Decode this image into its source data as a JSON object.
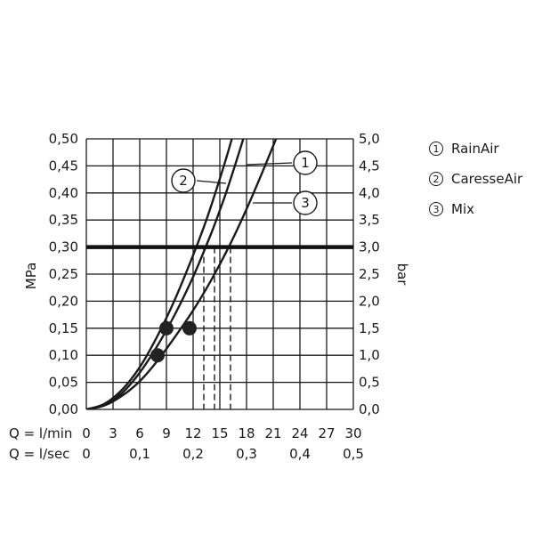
{
  "chart_data": {
    "type": "line",
    "y_left_label": "MPa",
    "y_right_label": "bar",
    "y_left_ticks": [
      "0,00",
      "0,05",
      "0,10",
      "0,15",
      "0,20",
      "0,25",
      "0,30",
      "0,35",
      "0,40",
      "0,45",
      "0,50"
    ],
    "y_right_ticks": [
      "0,0",
      "0,5",
      "1,0",
      "1,5",
      "2,0",
      "2,5",
      "3,0",
      "3,5",
      "4,0",
      "4,5",
      "5,0"
    ],
    "ylim": [
      0,
      0.5
    ],
    "xlim": [
      0,
      30
    ],
    "x_row1_prefix": "Q = l/min",
    "x_row1_ticks": [
      "0",
      "3",
      "6",
      "9",
      "12",
      "15",
      "18",
      "21",
      "24",
      "27",
      "30"
    ],
    "x_row2_prefix": "Q = l/sec",
    "x_row2_ticks": [
      "0",
      "0,1",
      "0,2",
      "0,3",
      "0,4",
      "0,5"
    ],
    "reference_pressure": 0.3,
    "series": [
      {
        "name": "RainAir",
        "number": "1",
        "x": [
          0,
          2,
          4,
          6,
          8,
          10,
          12,
          14,
          15,
          16,
          18,
          20,
          20.8
        ],
        "y": [
          0,
          0.008,
          0.03,
          0.068,
          0.118,
          0.177,
          0.245,
          0.324,
          0.368,
          0.415,
          0.52,
          0.64,
          0.69
        ],
        "marker": {
          "x": 8.0,
          "y": 0.1
        },
        "drop_x": 14.4
      },
      {
        "name": "CaresseAir",
        "number": "2",
        "x": [
          0,
          2,
          4,
          6,
          8,
          10,
          12,
          13,
          14,
          16,
          18,
          18.8
        ],
        "y": [
          0,
          0.01,
          0.036,
          0.078,
          0.136,
          0.205,
          0.285,
          0.328,
          0.375,
          0.48,
          0.6,
          0.65
        ],
        "marker": {
          "x": 9.0,
          "y": 0.15
        },
        "drop_x": 13.2
      },
      {
        "name": "Mix",
        "number": "3",
        "x": [
          0,
          2,
          4,
          6,
          8,
          10,
          12,
          14,
          16,
          18,
          20,
          22,
          22.4
        ],
        "y": [
          0,
          0.007,
          0.025,
          0.052,
          0.09,
          0.135,
          0.183,
          0.238,
          0.3,
          0.37,
          0.447,
          0.528,
          0.545
        ],
        "marker": {
          "x": 11.6,
          "y": 0.15
        },
        "drop_x": 16.2
      }
    ],
    "callouts": [
      "1",
      "2",
      "3"
    ],
    "legend": [
      {
        "number": "1",
        "label": "RainAir"
      },
      {
        "number": "2",
        "label": "CaresseAir"
      },
      {
        "number": "3",
        "label": "Mix"
      }
    ],
    "grid": true,
    "legend_position": "right"
  }
}
